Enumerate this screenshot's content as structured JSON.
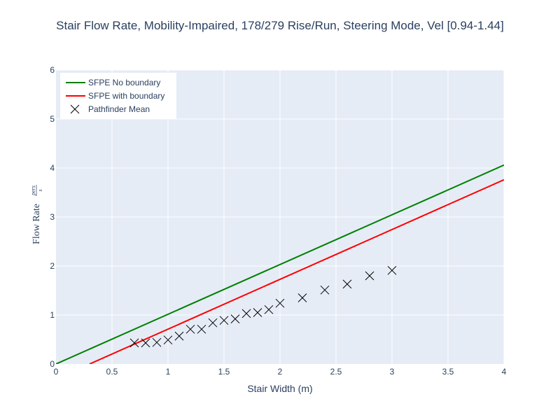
{
  "chart_data": {
    "type": "line",
    "title": "Stair Flow Rate, Mobility-Impaired, 178/279 Rise/Run, Steering Mode, Vel [0.94-1.44]",
    "xlabel": "Stair Width (m)",
    "ylabel": "Flow Rate",
    "ylabel_unit_numerator": "pers",
    "ylabel_unit_denominator": "s",
    "xlim": [
      0,
      4
    ],
    "ylim": [
      0,
      6
    ],
    "x_ticks": [
      "0",
      "0.5",
      "1",
      "1.5",
      "2",
      "2.5",
      "3",
      "3.5",
      "4"
    ],
    "y_ticks": [
      "0",
      "1",
      "2",
      "3",
      "4",
      "5",
      "6"
    ],
    "grid": true,
    "legend_position": "top-left",
    "plot_background": "#e5ecf6",
    "series": [
      {
        "name": "SFPE No boundary",
        "kind": "line",
        "color": "#008000",
        "x": [
          0,
          4
        ],
        "y": [
          0,
          4.06
        ]
      },
      {
        "name": "SFPE with boundary",
        "kind": "line",
        "color": "#ff0000",
        "x": [
          0.3,
          4
        ],
        "y": [
          0,
          3.76
        ]
      },
      {
        "name": "Pathfinder Mean",
        "kind": "markers",
        "marker": "x-thin",
        "color": "#000000",
        "x": [
          0.7,
          0.8,
          0.9,
          1.0,
          1.1,
          1.2,
          1.3,
          1.4,
          1.5,
          1.6,
          1.7,
          1.8,
          1.9,
          2.0,
          2.2,
          2.4,
          2.6,
          2.8,
          3.0
        ],
        "y": [
          0.43,
          0.43,
          0.44,
          0.49,
          0.57,
          0.71,
          0.71,
          0.84,
          0.89,
          0.92,
          1.03,
          1.05,
          1.11,
          1.24,
          1.35,
          1.51,
          1.63,
          1.8,
          1.91
        ]
      }
    ]
  }
}
